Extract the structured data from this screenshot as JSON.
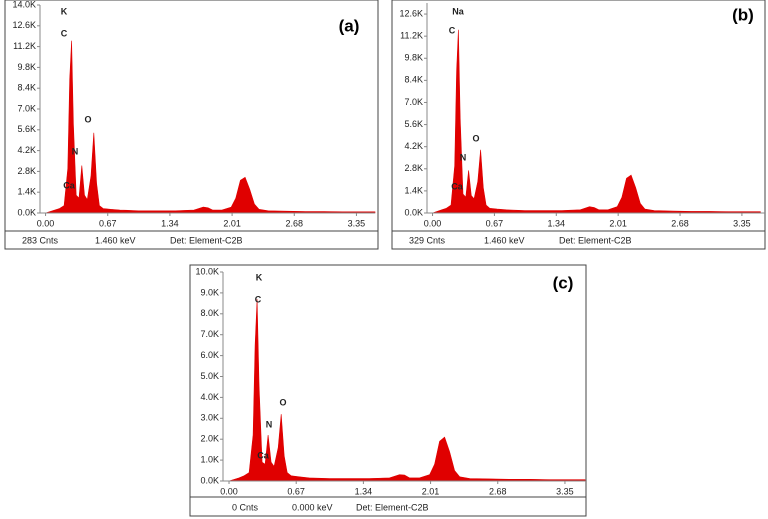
{
  "chart_data": [
    {
      "type": "area",
      "title": "(a)",
      "color": "#e00000",
      "x": [
        0,
        0.1,
        0.15,
        0.2,
        0.24,
        0.26,
        0.28,
        0.3,
        0.33,
        0.36,
        0.39,
        0.42,
        0.45,
        0.49,
        0.52,
        0.55,
        0.58,
        0.62,
        0.7,
        0.8,
        1.0,
        1.2,
        1.4,
        1.6,
        1.7,
        1.75,
        1.8,
        1.9,
        2.0,
        2.05,
        2.1,
        2.15,
        2.2,
        2.25,
        2.3,
        2.4,
        2.6,
        2.8,
        3.0,
        3.2,
        3.4,
        3.55
      ],
      "values": [
        0,
        0.2,
        0.3,
        0.5,
        3.0,
        9.0,
        11.6,
        6.0,
        1.2,
        1.0,
        3.2,
        1.2,
        0.9,
        2.5,
        5.4,
        2.0,
        0.5,
        0.3,
        0.25,
        0.2,
        0.15,
        0.15,
        0.15,
        0.2,
        0.4,
        0.35,
        0.2,
        0.2,
        0.4,
        1.0,
        2.2,
        2.4,
        1.6,
        0.6,
        0.25,
        0.15,
        0.12,
        0.1,
        0.1,
        0.08,
        0.08,
        0.08
      ],
      "xlim": [
        -0.06,
        3.55
      ],
      "ylim": [
        0,
        14
      ],
      "xticks": [
        {
          "value": 0,
          "label": "0.00"
        },
        0.67,
        1.34,
        2.01,
        2.68,
        3.35
      ],
      "yticks": [
        {
          "value": 0,
          "label": "0.0K"
        },
        {
          "value": 1.4,
          "label": "1.4K"
        },
        {
          "value": 2.8,
          "label": "2.8K"
        },
        {
          "value": 4.2,
          "label": "4.2K"
        },
        {
          "value": 5.6,
          "label": "5.6K"
        },
        {
          "value": 7.0,
          "label": "7.0K"
        },
        {
          "value": 8.4,
          "label": "8.4K"
        },
        {
          "value": 9.8,
          "label": "9.8K"
        },
        {
          "value": 11.2,
          "label": "11.2K"
        },
        {
          "value": 12.6,
          "label": "12.6K"
        },
        {
          "value": 14.0,
          "label": "14.0K"
        }
      ],
      "annotations": [
        "K",
        "C",
        "N",
        "Ca",
        "O"
      ],
      "footer": [
        "283 Cnts",
        "1.460 keV",
        "Det: Element-C2B"
      ]
    },
    {
      "type": "area",
      "title": "(b)",
      "color": "#e00000",
      "x": [
        0,
        0.1,
        0.15,
        0.2,
        0.24,
        0.26,
        0.28,
        0.3,
        0.33,
        0.36,
        0.39,
        0.42,
        0.45,
        0.49,
        0.52,
        0.55,
        0.58,
        0.62,
        0.7,
        0.8,
        1.0,
        1.2,
        1.4,
        1.6,
        1.7,
        1.75,
        1.8,
        1.9,
        2.0,
        2.05,
        2.1,
        2.15,
        2.2,
        2.25,
        2.3,
        2.4,
        2.6,
        2.8,
        3.0,
        3.2,
        3.4,
        3.55
      ],
      "values": [
        0,
        0.2,
        0.3,
        0.5,
        3.0,
        9.0,
        11.6,
        6.0,
        1.2,
        1.0,
        2.7,
        1.1,
        0.9,
        2.0,
        4.0,
        1.6,
        0.5,
        0.3,
        0.25,
        0.2,
        0.15,
        0.15,
        0.15,
        0.2,
        0.4,
        0.35,
        0.2,
        0.2,
        0.4,
        1.0,
        2.2,
        2.4,
        1.6,
        0.6,
        0.25,
        0.15,
        0.12,
        0.1,
        0.1,
        0.08,
        0.08,
        0.08
      ],
      "xlim": [
        -0.06,
        3.6
      ],
      "ylim": [
        0,
        13.3
      ],
      "xticks": [
        {
          "value": 0,
          "label": "0.00"
        },
        0.67,
        1.34,
        2.01,
        2.68,
        3.35
      ],
      "yticks": [
        {
          "value": 0,
          "label": "0.0K"
        },
        {
          "value": 1.4,
          "label": "1.4K"
        },
        {
          "value": 2.8,
          "label": "2.8K"
        },
        {
          "value": 4.2,
          "label": "4.2K"
        },
        {
          "value": 5.6,
          "label": "5.6K"
        },
        {
          "value": 7.0,
          "label": "7.0K"
        },
        {
          "value": 8.4,
          "label": "8.4K"
        },
        {
          "value": 9.8,
          "label": "9.8K"
        },
        {
          "value": 11.2,
          "label": "11.2K"
        },
        {
          "value": 12.6,
          "label": "12.6K"
        }
      ],
      "annotations": [
        "Na",
        "C",
        "N",
        "Ca",
        "O"
      ],
      "footer": [
        "329 Cnts",
        "1.460 keV",
        "Det: Element-C2B"
      ]
    },
    {
      "type": "area",
      "title": "(c)",
      "color": "#e00000",
      "x": [
        0,
        0.1,
        0.15,
        0.2,
        0.24,
        0.26,
        0.28,
        0.3,
        0.33,
        0.36,
        0.39,
        0.42,
        0.45,
        0.49,
        0.52,
        0.55,
        0.58,
        0.62,
        0.7,
        0.8,
        1.0,
        1.2,
        1.4,
        1.6,
        1.7,
        1.75,
        1.8,
        1.9,
        2.0,
        2.05,
        2.1,
        2.15,
        2.2,
        2.25,
        2.3,
        2.4,
        2.6,
        2.8,
        3.0,
        3.2,
        3.4,
        3.55
      ],
      "values": [
        0,
        0.15,
        0.25,
        0.4,
        2.2,
        6.5,
        8.7,
        4.5,
        0.9,
        0.8,
        2.2,
        0.9,
        0.7,
        1.6,
        3.2,
        1.2,
        0.4,
        0.25,
        0.2,
        0.15,
        0.12,
        0.12,
        0.12,
        0.15,
        0.3,
        0.28,
        0.15,
        0.15,
        0.3,
        0.8,
        1.9,
        2.1,
        1.4,
        0.5,
        0.2,
        0.12,
        0.1,
        0.08,
        0.08,
        0.06,
        0.06,
        0.06
      ],
      "xlim": [
        -0.06,
        3.55
      ],
      "ylim": [
        0,
        10
      ],
      "xticks": [
        {
          "value": 0,
          "label": "0.00"
        },
        0.67,
        1.34,
        2.01,
        2.68,
        3.35
      ],
      "yticks": [
        {
          "value": 0,
          "label": "0.0K"
        },
        {
          "value": 1,
          "label": "1.0K"
        },
        {
          "value": 2,
          "label": "2.0K"
        },
        {
          "value": 3,
          "label": "3.0K"
        },
        {
          "value": 4,
          "label": "4.0K"
        },
        {
          "value": 5,
          "label": "5.0K"
        },
        {
          "value": 6,
          "label": "6.0K"
        },
        {
          "value": 7,
          "label": "7.0K"
        },
        {
          "value": 8,
          "label": "8.0K"
        },
        {
          "value": 9,
          "label": "9.0K"
        },
        {
          "value": 10,
          "label": "10.0K"
        }
      ],
      "annotations": [
        "K",
        "C",
        "N",
        "Ca",
        "O"
      ],
      "footer": [
        "0 Cnts",
        "0.000 keV",
        "Det: Element-C2B"
      ]
    }
  ]
}
